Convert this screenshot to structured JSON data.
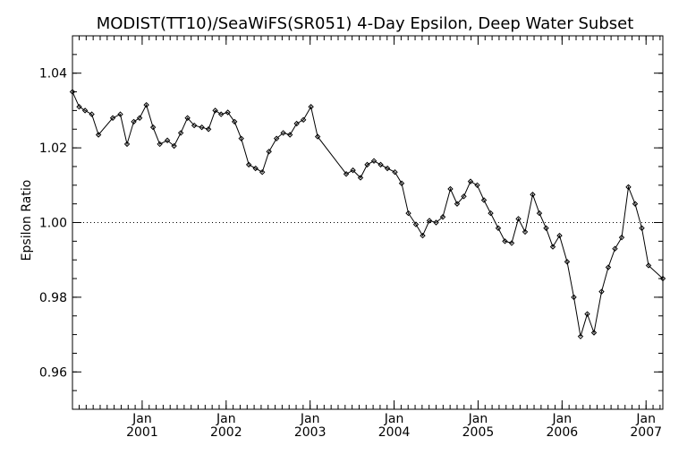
{
  "chart_data": {
    "type": "line",
    "title": "MODIST(TT10)/SeaWiFS(SR051) 4-Day Epsilon, Deep Water Subset",
    "xlabel": "",
    "ylabel": "Epsilon Ratio",
    "xlim": [
      2000.17,
      2007.2
    ],
    "ylim": [
      0.95,
      1.05
    ],
    "reference_line": {
      "y": 1.0,
      "style": "dotted"
    },
    "y_ticks": [
      {
        "value": 0.96,
        "label": "0.96"
      },
      {
        "value": 0.98,
        "label": "0.98"
      },
      {
        "value": 1.0,
        "label": "1.00"
      },
      {
        "value": 1.02,
        "label": "1.02"
      },
      {
        "value": 1.04,
        "label": "1.04"
      }
    ],
    "x_ticks": [
      {
        "value": 2001.0,
        "month": "Jan",
        "year": "2001"
      },
      {
        "value": 2002.0,
        "month": "Jan",
        "year": "2002"
      },
      {
        "value": 2003.0,
        "month": "Jan",
        "year": "2003"
      },
      {
        "value": 2004.0,
        "month": "Jan",
        "year": "2004"
      },
      {
        "value": 2005.0,
        "month": "Jan",
        "year": "2005"
      },
      {
        "value": 2006.0,
        "month": "Jan",
        "year": "2006"
      },
      {
        "value": 2007.0,
        "month": "Jan",
        "year": "2007"
      }
    ],
    "series": [
      {
        "color": "#000000",
        "marker": "diamond",
        "points": [
          [
            2000.17,
            1.035
          ],
          [
            2000.25,
            1.031
          ],
          [
            2000.32,
            1.03
          ],
          [
            2000.4,
            1.029
          ],
          [
            2000.48,
            1.0235
          ],
          [
            2000.65,
            1.028
          ],
          [
            2000.74,
            1.029
          ],
          [
            2000.82,
            1.021
          ],
          [
            2000.9,
            1.027
          ],
          [
            2000.97,
            1.028
          ],
          [
            2001.05,
            1.0315
          ],
          [
            2001.13,
            1.0255
          ],
          [
            2001.21,
            1.021
          ],
          [
            2001.3,
            1.022
          ],
          [
            2001.38,
            1.0205
          ],
          [
            2001.46,
            1.024
          ],
          [
            2001.54,
            1.028
          ],
          [
            2001.62,
            1.026
          ],
          [
            2001.71,
            1.0255
          ],
          [
            2001.79,
            1.025
          ],
          [
            2001.87,
            1.03
          ],
          [
            2001.94,
            1.029
          ],
          [
            2002.02,
            1.0295
          ],
          [
            2002.1,
            1.027
          ],
          [
            2002.18,
            1.0225
          ],
          [
            2002.27,
            1.0155
          ],
          [
            2002.35,
            1.0145
          ],
          [
            2002.43,
            1.0135
          ],
          [
            2002.51,
            1.019
          ],
          [
            2002.6,
            1.0225
          ],
          [
            2002.68,
            1.024
          ],
          [
            2002.76,
            1.0235
          ],
          [
            2002.84,
            1.0265
          ],
          [
            2002.92,
            1.0275
          ],
          [
            2003.01,
            1.031
          ],
          [
            2003.09,
            1.023
          ],
          [
            2003.43,
            1.013
          ],
          [
            2003.51,
            1.014
          ],
          [
            2003.6,
            1.012
          ],
          [
            2003.68,
            1.0155
          ],
          [
            2003.76,
            1.0165
          ],
          [
            2003.84,
            1.0155
          ],
          [
            2003.92,
            1.0145
          ],
          [
            2004.01,
            1.0135
          ],
          [
            2004.09,
            1.0105
          ],
          [
            2004.17,
            1.0025
          ],
          [
            2004.26,
            0.9995
          ],
          [
            2004.34,
            0.9965
          ],
          [
            2004.42,
            1.0005
          ],
          [
            2004.5,
            1.0
          ],
          [
            2004.58,
            1.0015
          ],
          [
            2004.67,
            1.009
          ],
          [
            2004.75,
            1.005
          ],
          [
            2004.83,
            1.007
          ],
          [
            2004.91,
            1.011
          ],
          [
            2004.99,
            1.01
          ],
          [
            2005.07,
            1.006
          ],
          [
            2005.15,
            1.0025
          ],
          [
            2005.24,
            0.9985
          ],
          [
            2005.32,
            0.995
          ],
          [
            2005.4,
            0.9945
          ],
          [
            2005.48,
            1.001
          ],
          [
            2005.56,
            0.9975
          ],
          [
            2005.65,
            1.0075
          ],
          [
            2005.73,
            1.0025
          ],
          [
            2005.81,
            0.9985
          ],
          [
            2005.89,
            0.9935
          ],
          [
            2005.97,
            0.9965
          ],
          [
            2006.06,
            0.9895
          ],
          [
            2006.14,
            0.98
          ],
          [
            2006.22,
            0.9695
          ],
          [
            2006.3,
            0.9755
          ],
          [
            2006.38,
            0.9705
          ],
          [
            2006.47,
            0.9815
          ],
          [
            2006.55,
            0.988
          ],
          [
            2006.63,
            0.993
          ],
          [
            2006.71,
            0.996
          ],
          [
            2006.79,
            1.0095
          ],
          [
            2006.87,
            1.005
          ],
          [
            2006.95,
            0.9985
          ],
          [
            2007.03,
            0.9885
          ],
          [
            2007.2,
            0.985
          ]
        ]
      }
    ]
  }
}
